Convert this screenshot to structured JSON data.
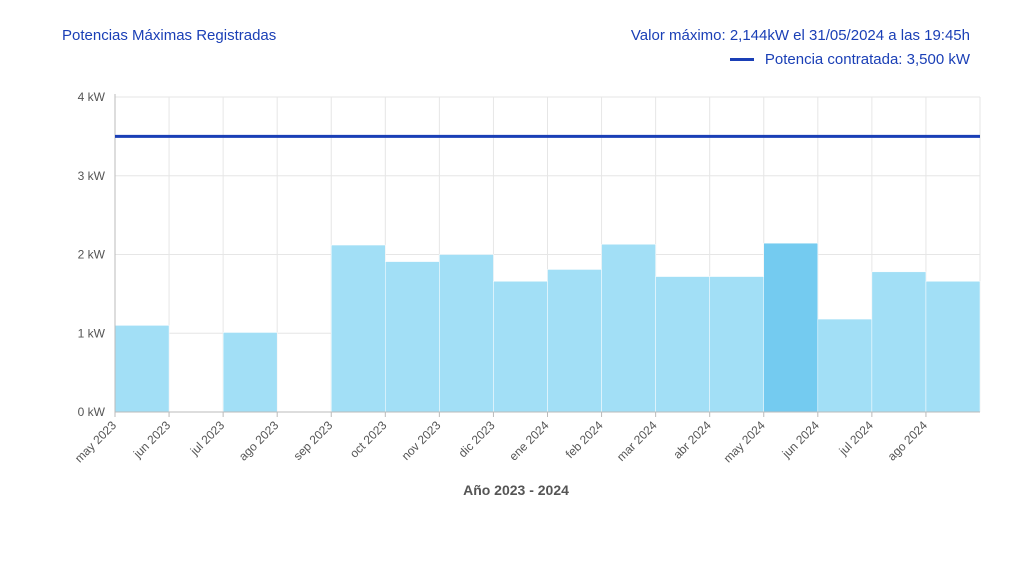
{
  "header": {
    "title": "Potencias Máximas Registradas",
    "max_value_text": "Valor máximo: 2,144kW el 31/05/2024 a las 19:45h",
    "legend_label": "Potencia contratada: 3,500 kW"
  },
  "colors": {
    "bar": "#a2dff6",
    "bar_highlight": "#74cbf0",
    "contract_line": "#1a3fb6",
    "grid": "#e6e6e6"
  },
  "chart_data": {
    "type": "bar",
    "categories": [
      "may 2023",
      "jun 2023",
      "jul 2023",
      "ago 2023",
      "sep 2023",
      "oct 2023",
      "nov 2023",
      "dic 2023",
      "ene 2024",
      "feb 2024",
      "mar 2024",
      "abr 2024",
      "may 2024",
      "jun 2024",
      "jul 2024",
      "ago 2024"
    ],
    "values": [
      1.1,
      0.0,
      1.01,
      0.0,
      2.12,
      1.91,
      2.0,
      1.66,
      1.81,
      2.13,
      1.72,
      1.72,
      2.144,
      1.18,
      1.78,
      1.66
    ],
    "highlight_index": 12,
    "reference_line": {
      "value": 3.5,
      "label": "Potencia contratada: 3,500 kW"
    },
    "yticks": [
      "0 kW",
      "1 kW",
      "2 kW",
      "3 kW",
      "4 kW"
    ],
    "ylim": [
      0,
      4
    ],
    "xlabel": "Año 2023 - 2024",
    "ylabel": "",
    "grid": true,
    "legend_position": "top-right"
  }
}
